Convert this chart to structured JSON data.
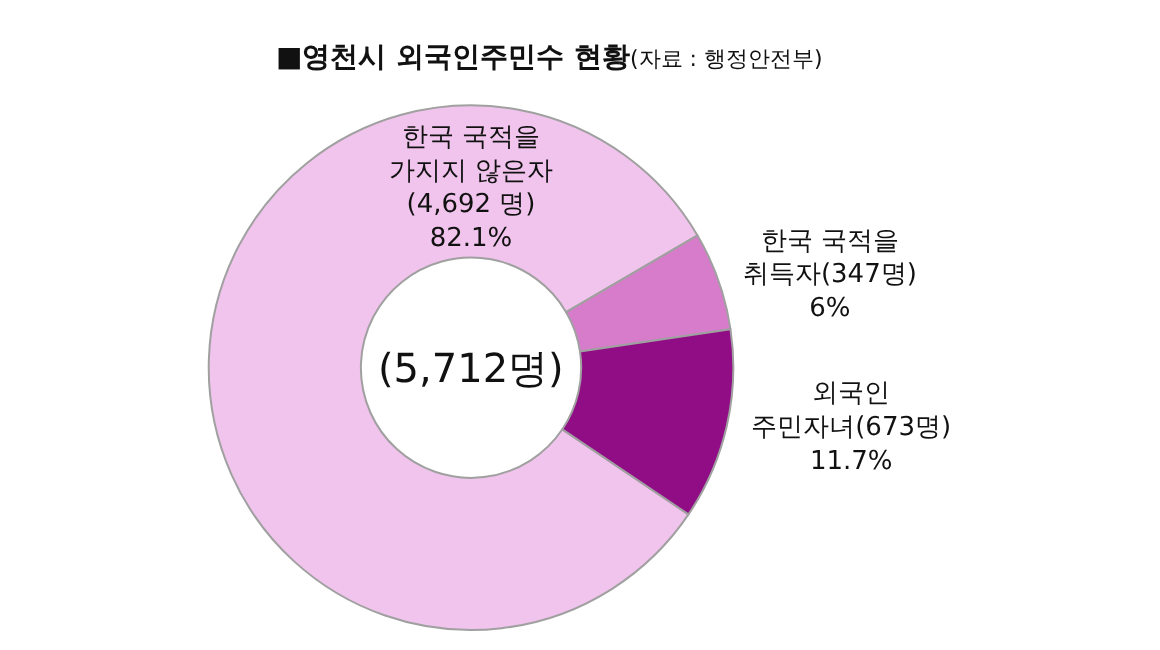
{
  "chart_data": {
    "type": "donut",
    "title": "■영천시 외국인주민수 현황",
    "subtitle": "(자료 : 행정안전부)",
    "categories": [
      "한국 국적을\n가지지 않은자",
      "한국 국적을\n취득자",
      "외국인\n주민자녀"
    ],
    "values": [
      4692,
      347,
      673
    ],
    "value_labels": [
      "(4,692 명)\n82.1%",
      "(347명)\n6%",
      "(673명)\n11.7%"
    ],
    "colors": [
      "#f0c4ec",
      "#d67ccb",
      "#900d85"
    ],
    "annotations": [
      "(5,712명)"
    ],
    "legend": false
  }
}
